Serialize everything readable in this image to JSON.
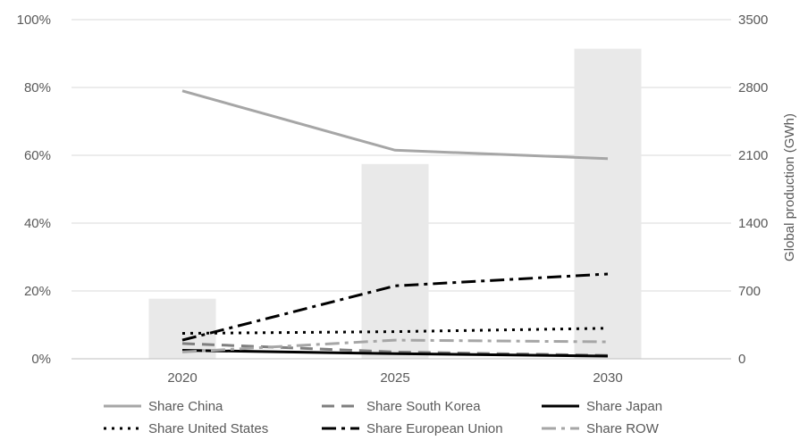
{
  "chart_data": {
    "type": "bar+line",
    "x": [
      "2020",
      "2025",
      "2030"
    ],
    "bars": {
      "name": "",
      "axis": "right",
      "values": [
        620,
        2010,
        3200
      ],
      "color": "#e9e9e9"
    },
    "series": [
      {
        "name": "Share China",
        "values": [
          0.79,
          0.615,
          0.59
        ],
        "color": "#a6a6a6",
        "dash": "solid",
        "width": 3
      },
      {
        "name": "Share South Korea",
        "values": [
          0.045,
          0.02,
          0.01
        ],
        "color": "#7f7f7f",
        "dash": "dash",
        "width": 3
      },
      {
        "name": "Share Japan",
        "values": [
          0.025,
          0.015,
          0.008
        ],
        "color": "#000000",
        "dash": "solid",
        "width": 3
      },
      {
        "name": "Share United States",
        "values": [
          0.075,
          0.08,
          0.09
        ],
        "color": "#000000",
        "dash": "dot",
        "width": 3
      },
      {
        "name": "Share European Union",
        "values": [
          0.055,
          0.215,
          0.25
        ],
        "color": "#000000",
        "dash": "dashdot",
        "width": 3
      },
      {
        "name": "Share ROW",
        "values": [
          0.02,
          0.055,
          0.05
        ],
        "color": "#a6a6a6",
        "dash": "dashdot",
        "width": 3
      }
    ],
    "y_left": {
      "ticks": [
        "0%",
        "20%",
        "40%",
        "60%",
        "80%",
        "100%"
      ],
      "range": [
        0,
        1
      ]
    },
    "y_right": {
      "label": "Global production (GWh)",
      "ticks": [
        "0",
        "700",
        "1400",
        "2100",
        "2800",
        "3500"
      ],
      "range": [
        0,
        3500
      ]
    },
    "grid": true,
    "legend_position": "bottom"
  }
}
